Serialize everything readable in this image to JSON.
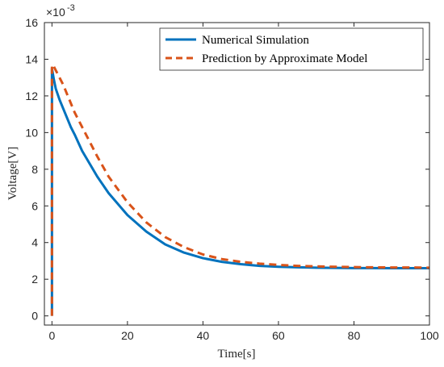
{
  "chart_data": {
    "type": "line",
    "title": "",
    "xlabel": "Time[s]",
    "ylabel": "Voltage[V]",
    "xlim": [
      -2,
      100
    ],
    "ylim": [
      -0.5,
      16
    ],
    "y_scale_exponent": "×10",
    "y_scale_power": "-3",
    "xticks": [
      "0",
      "20",
      "40",
      "60",
      "80",
      "100"
    ],
    "yticks": [
      "0",
      "2",
      "4",
      "6",
      "8",
      "10",
      "12",
      "14",
      "16"
    ],
    "grid": false,
    "legend_position": "top-right",
    "series": [
      {
        "name": "Numerical Simulation",
        "color": "#0072BD",
        "style": "solid",
        "x": [
          0,
          0,
          0.5,
          1,
          2,
          3,
          4,
          5,
          6,
          8,
          10,
          12,
          15,
          20,
          25,
          30,
          35,
          40,
          45,
          50,
          55,
          60,
          65,
          70,
          75,
          80,
          85,
          90,
          95,
          100
        ],
        "y": [
          0.0,
          13.5,
          12.9,
          12.4,
          11.8,
          11.3,
          10.8,
          10.3,
          9.9,
          9.0,
          8.3,
          7.6,
          6.7,
          5.5,
          4.6,
          3.9,
          3.45,
          3.15,
          2.95,
          2.82,
          2.73,
          2.68,
          2.65,
          2.63,
          2.62,
          2.61,
          2.61,
          2.6,
          2.6,
          2.6
        ]
      },
      {
        "name": "Prediction by Approximate Model",
        "color": "#D95319",
        "style": "dashed",
        "x": [
          0,
          0,
          0.5,
          1,
          2,
          3,
          4,
          5,
          6,
          8,
          10,
          12,
          15,
          20,
          25,
          30,
          35,
          40,
          45,
          50,
          55,
          60,
          65,
          70,
          75,
          80,
          85,
          90,
          95,
          100
        ],
        "y": [
          0.0,
          13.7,
          13.6,
          13.4,
          13.0,
          12.6,
          12.1,
          11.6,
          11.1,
          10.3,
          9.5,
          8.7,
          7.6,
          6.2,
          5.1,
          4.3,
          3.75,
          3.35,
          3.1,
          2.95,
          2.85,
          2.78,
          2.73,
          2.7,
          2.68,
          2.66,
          2.65,
          2.64,
          2.64,
          2.63
        ]
      }
    ]
  }
}
